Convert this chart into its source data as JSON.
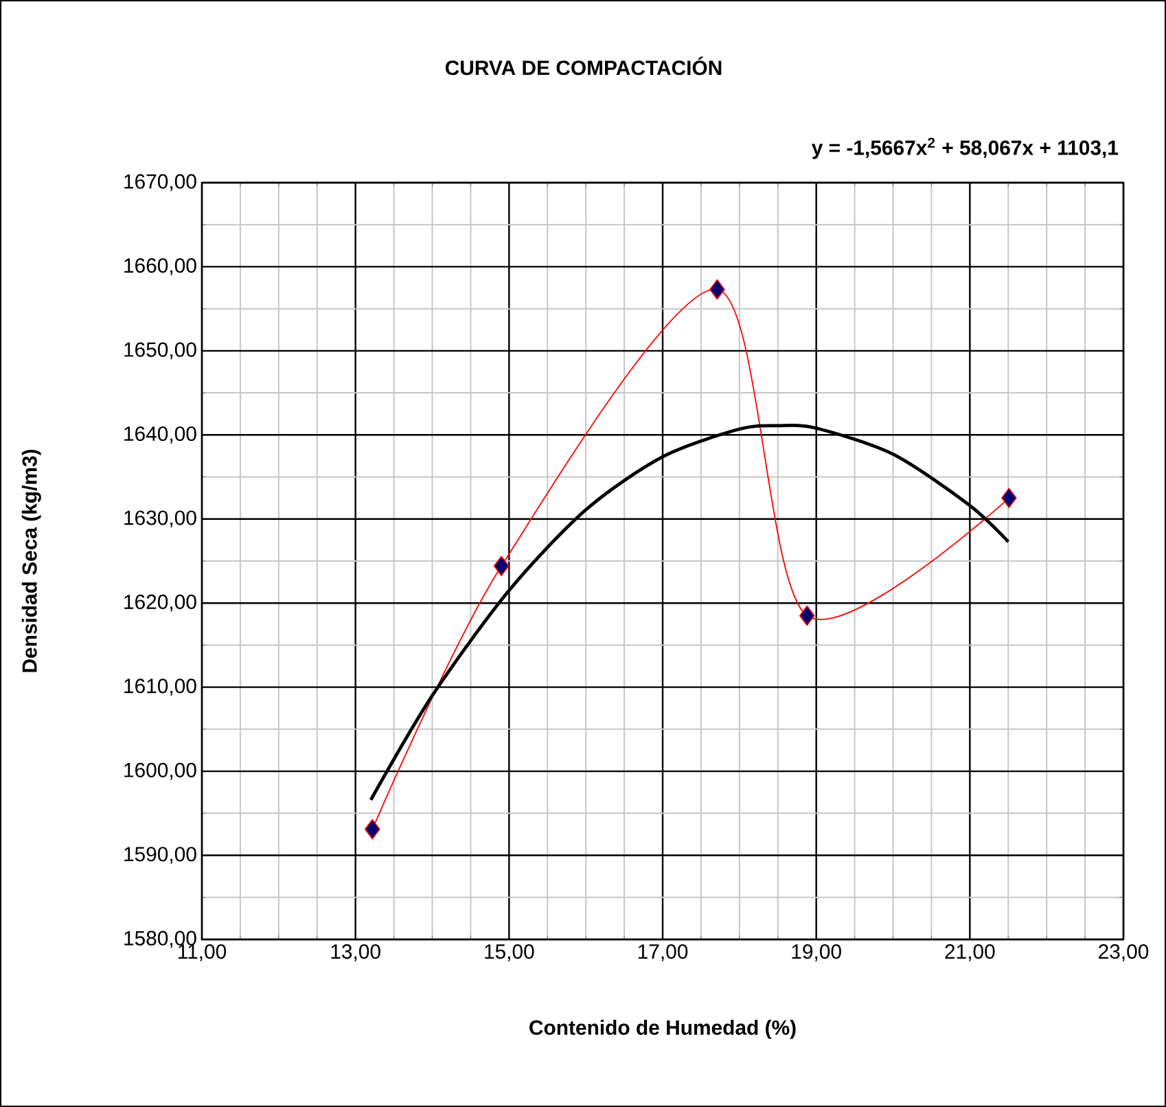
{
  "chart_data": {
    "type": "line",
    "title": "CURVA DE COMPACTACIÓN",
    "xlabel": "Contenido de Humedad (%)",
    "ylabel": "Densidad Seca (kg/m3)",
    "annotations": [
      "y = -1,5667x$^{2}$ + 58,067x + 1103,1"
    ],
    "xlim": [
      11,
      23
    ],
    "ylim": [
      1580,
      1670
    ],
    "xticks": [
      {
        "value": 11,
        "label": "11,00"
      },
      {
        "value": 13,
        "label": "13,00"
      },
      {
        "value": 15,
        "label": "15,00"
      },
      {
        "value": 17,
        "label": "17,00"
      },
      {
        "value": 19,
        "label": "19,00"
      },
      {
        "value": 21,
        "label": "21,00"
      },
      {
        "value": 23,
        "label": "23,00"
      }
    ],
    "yticks": [
      {
        "value": 1580,
        "label": "1580,00"
      },
      {
        "value": 1590,
        "label": "1590,00"
      },
      {
        "value": 1600,
        "label": "1600,00"
      },
      {
        "value": 1610,
        "label": "1610,00"
      },
      {
        "value": 1620,
        "label": "1620,00"
      },
      {
        "value": 1630,
        "label": "1630,00"
      },
      {
        "value": 1640,
        "label": "1640,00"
      },
      {
        "value": 1650,
        "label": "1650,00"
      },
      {
        "value": 1660,
        "label": "1660,00"
      },
      {
        "value": 1670,
        "label": "1670,00"
      }
    ],
    "grid": true,
    "series": [
      {
        "color": "#ff0000",
        "marker": "diamond",
        "x": [
          13.22,
          14.9,
          17.71,
          18.88,
          21.51
        ],
        "values": [
          1593.1,
          1624.4,
          1657.3,
          1618.5,
          1632.5
        ]
      },
      {
        "color": "#000000",
        "marker": "none",
        "x": [
          13.2,
          14,
          15,
          16,
          17,
          18,
          18.5,
          19,
          20,
          21,
          21.5
        ],
        "values": [
          1596.6,
          1609,
          1621.5,
          1631.1,
          1637.4,
          1640.7,
          1641.1,
          1640.8,
          1637.7,
          1631.6,
          1627.3
        ]
      }
    ]
  }
}
